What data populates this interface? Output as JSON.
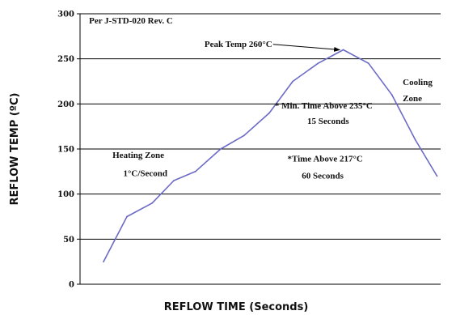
{
  "chart_data": {
    "type": "line",
    "xlabel": "REFLOW TIME (Seconds)",
    "ylabel": "REFLOW TEMP (ºC)",
    "ylim": [
      0,
      300
    ],
    "yticks": [
      0,
      50,
      100,
      150,
      200,
      250,
      300
    ],
    "xlim": [
      0,
      20
    ],
    "grid": "horizontal",
    "line_color": "#6b6bc6",
    "series": [
      {
        "points": [
          [
            1.3,
            25
          ],
          [
            2.6,
            75
          ],
          [
            4.0,
            90
          ],
          [
            5.2,
            115
          ],
          [
            6.4,
            125
          ],
          [
            7.8,
            150
          ],
          [
            9.1,
            165
          ],
          [
            10.5,
            190
          ],
          [
            11.8,
            225
          ],
          [
            13.2,
            245
          ],
          [
            14.6,
            260
          ],
          [
            16.0,
            245
          ],
          [
            17.3,
            210
          ],
          [
            18.6,
            160
          ],
          [
            19.8,
            120
          ]
        ]
      }
    ],
    "annotations": [
      {
        "text": "Per J-STD-020 Rev. C",
        "x": 0.5,
        "y": 289
      },
      {
        "text": "Peak Temp 260°C",
        "x": 6.9,
        "y": 263,
        "arrow_to": [
          14.4,
          260
        ]
      },
      {
        "text": "Cooling",
        "x": 17.9,
        "y": 221
      },
      {
        "text": "Zone",
        "x": 17.9,
        "y": 203
      },
      {
        "text": "* Min. Time Above 235°C",
        "x": 10.8,
        "y": 195
      },
      {
        "text": "15 Seconds",
        "x": 12.6,
        "y": 178
      },
      {
        "text": "Heating Zone",
        "x": 1.8,
        "y": 140
      },
      {
        "text": "1°C/Second",
        "x": 2.4,
        "y": 120
      },
      {
        "text": "*Time Above 217°C",
        "x": 11.5,
        "y": 136
      },
      {
        "text": "60 Seconds",
        "x": 12.3,
        "y": 117
      }
    ]
  }
}
